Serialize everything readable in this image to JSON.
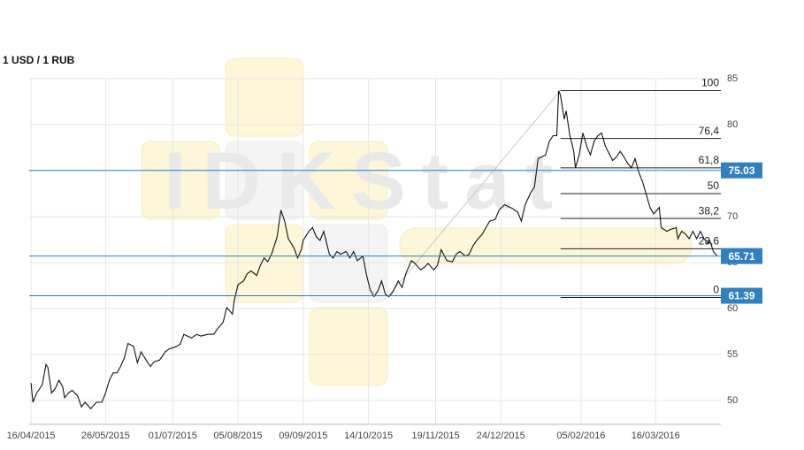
{
  "chart_data": {
    "type": "line",
    "title": "1 USD / 1 RUB",
    "watermark": "IDKStat",
    "color": "#111111",
    "x": [
      "2015-04-16",
      "2015-04-17",
      "2015-04-19",
      "2015-04-22",
      "2015-04-24",
      "2015-04-25",
      "2015-04-27",
      "2015-04-29",
      "2015-05-01",
      "2015-05-03",
      "2015-05-04",
      "2015-05-06",
      "2015-05-08",
      "2015-05-11",
      "2015-05-13",
      "2015-05-15",
      "2015-05-18",
      "2015-05-21",
      "2015-05-24",
      "2015-05-26",
      "2015-05-28",
      "2015-05-30",
      "2015-06-01",
      "2015-06-03",
      "2015-06-05",
      "2015-06-07",
      "2015-06-10",
      "2015-06-12",
      "2015-06-14",
      "2015-06-17",
      "2015-06-19",
      "2015-06-21",
      "2015-06-24",
      "2015-06-27",
      "2015-06-29",
      "2015-07-02",
      "2015-07-05",
      "2015-07-07",
      "2015-07-11",
      "2015-07-14",
      "2015-07-16",
      "2015-07-20",
      "2015-07-23",
      "2015-07-25",
      "2015-07-28",
      "2015-07-30",
      "2015-08-02",
      "2015-08-03",
      "2015-08-05",
      "2015-08-08",
      "2015-08-10",
      "2015-08-12",
      "2015-08-15",
      "2015-08-17",
      "2015-08-19",
      "2015-08-21",
      "2015-08-23",
      "2015-08-26",
      "2015-08-28",
      "2015-08-30",
      "2015-09-01",
      "2015-09-04",
      "2015-09-06",
      "2015-09-08",
      "2015-09-09",
      "2015-09-12",
      "2015-09-14",
      "2015-09-16",
      "2015-09-18",
      "2015-09-20",
      "2015-09-23",
      "2015-09-25",
      "2015-09-27",
      "2015-09-29",
      "2015-10-02",
      "2015-10-04",
      "2015-10-06",
      "2015-10-08",
      "2015-10-11",
      "2015-10-13",
      "2015-10-15",
      "2015-10-17",
      "2015-10-19",
      "2015-10-21",
      "2015-10-23",
      "2015-10-25",
      "2015-10-27",
      "2015-10-30",
      "2015-11-01",
      "2015-11-03",
      "2015-11-06",
      "2015-11-08",
      "2015-11-11",
      "2015-11-13",
      "2015-11-15",
      "2015-11-18",
      "2015-11-20",
      "2015-11-22",
      "2015-11-25",
      "2015-11-28",
      "2015-11-30",
      "2015-12-02",
      "2015-12-05",
      "2015-12-07",
      "2015-12-09",
      "2015-12-11",
      "2015-12-14",
      "2015-12-16",
      "2015-12-18",
      "2015-12-21",
      "2015-12-23",
      "2015-12-26",
      "2015-12-28",
      "2015-12-30",
      "2016-01-02",
      "2016-01-04",
      "2016-01-06",
      "2016-01-09",
      "2016-01-11",
      "2016-01-13",
      "2016-01-14",
      "2016-01-17",
      "2016-01-19",
      "2016-01-21",
      "2016-01-23",
      "2016-01-24",
      "2016-01-25",
      "2016-01-27",
      "2016-01-28",
      "2016-01-30",
      "2016-02-01",
      "2016-02-02",
      "2016-02-04",
      "2016-02-06",
      "2016-02-08",
      "2016-02-10",
      "2016-02-12",
      "2016-02-14",
      "2016-02-16",
      "2016-02-18",
      "2016-02-20",
      "2016-02-22",
      "2016-02-24",
      "2016-02-26",
      "2016-02-28",
      "2016-03-01",
      "2016-03-03",
      "2016-03-05",
      "2016-03-07",
      "2016-03-09",
      "2016-03-11",
      "2016-03-13",
      "2016-03-15",
      "2016-03-18",
      "2016-03-19",
      "2016-03-22",
      "2016-03-24",
      "2016-03-27",
      "2016-03-28",
      "2016-03-30",
      "2016-04-01",
      "2016-04-03",
      "2016-04-05",
      "2016-04-07",
      "2016-04-09",
      "2016-04-11",
      "2016-04-13",
      "2016-04-14",
      "2016-04-16",
      "2016-04-18"
    ],
    "values": [
      51.9,
      49.8,
      50.8,
      51.7,
      53.9,
      53.6,
      50.8,
      51.3,
      52.2,
      51.5,
      50.3,
      50.8,
      51.1,
      50.5,
      49.3,
      49.8,
      49.1,
      49.8,
      49.8,
      50.8,
      52.2,
      53.0,
      53.0,
      53.7,
      54.6,
      56.2,
      55.9,
      54.1,
      55.3,
      54.3,
      53.7,
      54.2,
      54.4,
      55.3,
      55.6,
      55.8,
      56.1,
      57.2,
      56.8,
      57.2,
      57.0,
      57.2,
      57.2,
      57.8,
      58.5,
      60.1,
      59.4,
      60.9,
      62.6,
      63.0,
      63.8,
      64.1,
      63.6,
      64.7,
      65.5,
      65.1,
      65.9,
      67.8,
      70.7,
      69.5,
      67.6,
      66.6,
      65.5,
      66.4,
      67.4,
      68.4,
      68.8,
      67.8,
      67.4,
      68.4,
      65.9,
      65.5,
      66.2,
      65.9,
      66.2,
      65.5,
      66.2,
      65.2,
      65.7,
      63.6,
      62.0,
      61.3,
      61.9,
      63.0,
      61.6,
      61.3,
      61.8,
      63.0,
      62.3,
      63.8,
      65.2,
      64.9,
      64.2,
      64.5,
      64.9,
      64.2,
      64.7,
      66.4,
      65.2,
      65.1,
      65.9,
      66.2,
      65.7,
      65.9,
      66.8,
      67.4,
      68.1,
      68.8,
      69.5,
      69.7,
      70.7,
      71.3,
      71.1,
      70.9,
      70.5,
      69.5,
      71.3,
      72.6,
      73.2,
      76.3,
      76.4,
      76.7,
      78.2,
      78.8,
      78.8,
      83.7,
      83.2,
      80.6,
      81.5,
      78.8,
      77.2,
      75.3,
      76.7,
      79.1,
      77.7,
      76.7,
      78.2,
      78.8,
      79.1,
      77.7,
      76.9,
      76.1,
      76.5,
      77.1,
      76.5,
      75.8,
      75.3,
      76.3,
      74.8,
      73.8,
      72.4,
      71.0,
      70.3,
      71.0,
      68.8,
      68.4,
      68.6,
      68.8,
      67.6,
      68.4,
      68.1,
      67.6,
      68.4,
      67.6,
      68.4,
      67.6,
      67.1,
      67.4,
      66.2,
      65.7
    ],
    "xlim": [
      "2015-04-15",
      "2016-04-20"
    ],
    "xticks": [
      {
        "value": "2015-04-16",
        "label": "16/04/2015"
      },
      {
        "value": "2015-05-26",
        "label": "26/05/2015"
      },
      {
        "value": "2015-07-01",
        "label": "01/07/2015"
      },
      {
        "value": "2015-08-05",
        "label": "05/08/2015"
      },
      {
        "value": "2015-09-09",
        "label": "09/09/2015"
      },
      {
        "value": "2015-10-14",
        "label": "14/10/2015"
      },
      {
        "value": "2015-11-19",
        "label": "19/11/2015"
      },
      {
        "value": "2015-12-24",
        "label": "24/12/2015"
      },
      {
        "value": "2016-02-05",
        "label": "05/02/2016"
      },
      {
        "value": "2016-03-16",
        "label": "16/03/2016"
      }
    ],
    "ylim": [
      47.4,
      85.1
    ],
    "yticks": [
      50,
      55,
      60,
      65,
      70,
      75,
      80,
      85
    ],
    "grid": true,
    "price_lines": [
      75.03,
      65.71,
      61.39
    ],
    "price_line_color": "#2f7fc1",
    "fib_anchor": {
      "x": [
        "2015-10-24",
        "2016-01-25"
      ],
      "y": [
        61.2,
        83.7
      ]
    },
    "fib_levels": [
      {
        "label": "100",
        "price": 83.7
      },
      {
        "label": "76,4",
        "price": 78.5
      },
      {
        "label": "61,8",
        "price": 75.3
      },
      {
        "label": "50",
        "price": 72.5
      },
      {
        "label": "38,2",
        "price": 69.8
      },
      {
        "label": "23,6",
        "price": 66.5
      },
      {
        "label": "0",
        "price": 61.2
      }
    ]
  }
}
